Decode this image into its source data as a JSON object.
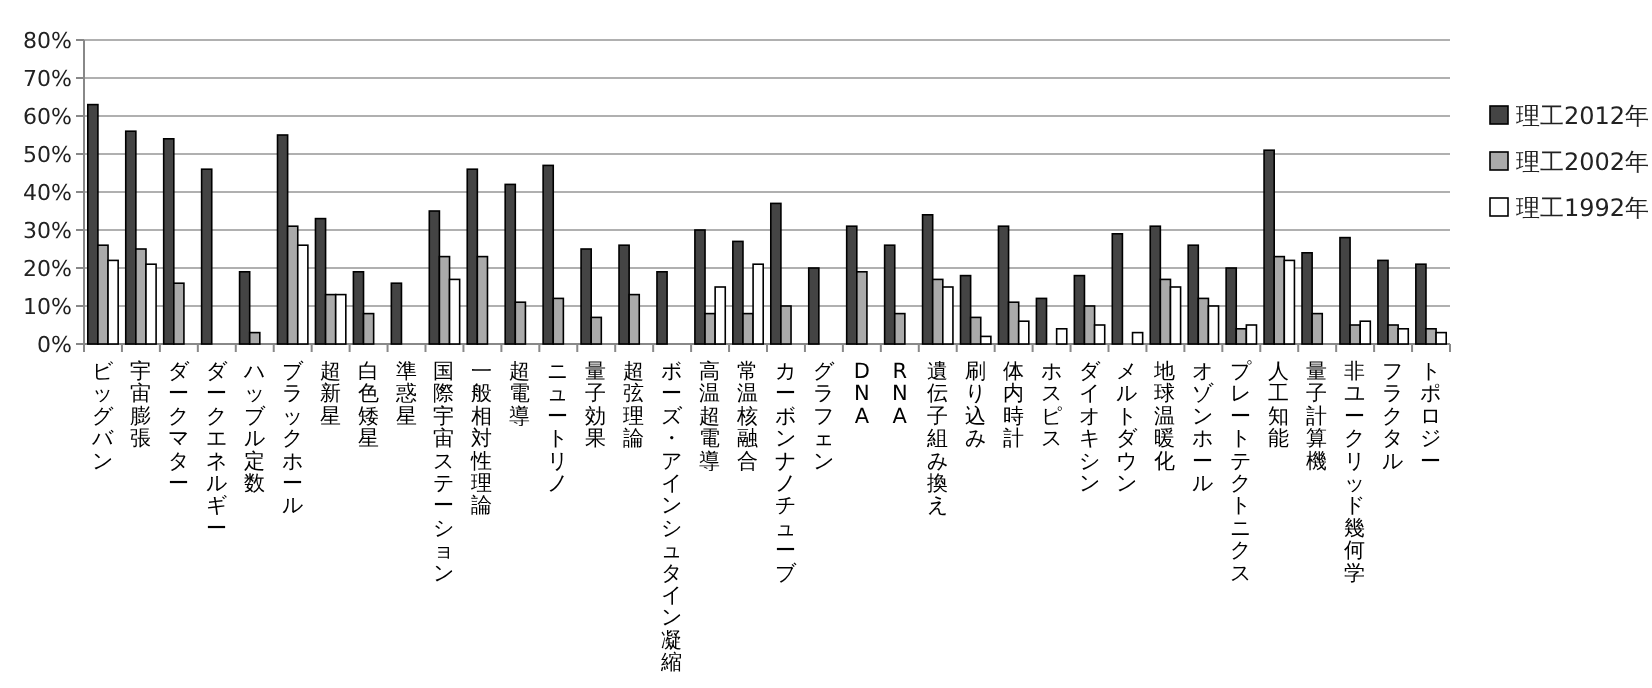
{
  "chart_data": {
    "type": "bar",
    "categories": [
      "ビッグバン",
      "宇宙膨張",
      "ダークマター",
      "ダークエネルギー",
      "ハッブル定数",
      "ブラックホール",
      "超新星",
      "白色矮星",
      "準惑星",
      "国際宇宙ステーション",
      "一般相対性理論",
      "超電導",
      "ニュートリノ",
      "量子効果",
      "超弦理論",
      "ボーズ・アインシュタイン凝縮",
      "高温超電導",
      "常温核融合",
      "カーボンナノチューブ",
      "グラフェン",
      "DNA",
      "RNA",
      "遺伝子組み換え",
      "刷り込み",
      "体内時計",
      "ホスピス",
      "ダイオキシン",
      "メルトダウン",
      "地球温暖化",
      "オゾンホール",
      "プレートテクトニクス",
      "人工知能",
      "量子計算機",
      "非ユークリッド幾何学",
      "フラクタル",
      "トポロジー"
    ],
    "series": [
      {
        "name": "理工2012年",
        "color": "#444444",
        "values": [
          63,
          56,
          54,
          46,
          19,
          55,
          33,
          19,
          16,
          35,
          46,
          42,
          47,
          25,
          26,
          19,
          30,
          27,
          37,
          20,
          31,
          26,
          34,
          18,
          31,
          12,
          18,
          29,
          31,
          26,
          20,
          51,
          24,
          28,
          22,
          21
        ]
      },
      {
        "name": "理工2002年",
        "color": "#aaaaaa",
        "values": [
          26,
          25,
          16,
          null,
          3,
          31,
          13,
          8,
          null,
          23,
          23,
          11,
          12,
          7,
          13,
          null,
          8,
          8,
          10,
          null,
          19,
          8,
          17,
          7,
          11,
          null,
          10,
          null,
          17,
          12,
          4,
          23,
          8,
          5,
          5,
          4
        ]
      },
      {
        "name": "理工1992年",
        "color": "#ffffff",
        "values": [
          22,
          21,
          null,
          null,
          null,
          26,
          13,
          null,
          null,
          17,
          null,
          null,
          null,
          null,
          null,
          null,
          15,
          21,
          null,
          null,
          null,
          null,
          15,
          2,
          6,
          4,
          5,
          3,
          15,
          10,
          5,
          22,
          null,
          6,
          4,
          3
        ]
      }
    ],
    "ylim": [
      0,
      80
    ],
    "yticks": [
      {
        "value": 0,
        "label": "0%"
      },
      {
        "value": 10,
        "label": "10%"
      },
      {
        "value": 20,
        "label": "20%"
      },
      {
        "value": 30,
        "label": "30%"
      },
      {
        "value": 40,
        "label": "40%"
      },
      {
        "value": 50,
        "label": "50%"
      },
      {
        "value": 60,
        "label": "60%"
      },
      {
        "value": 70,
        "label": "70%"
      },
      {
        "value": 80,
        "label": "80%"
      }
    ],
    "grid": "y",
    "legend": "right"
  }
}
